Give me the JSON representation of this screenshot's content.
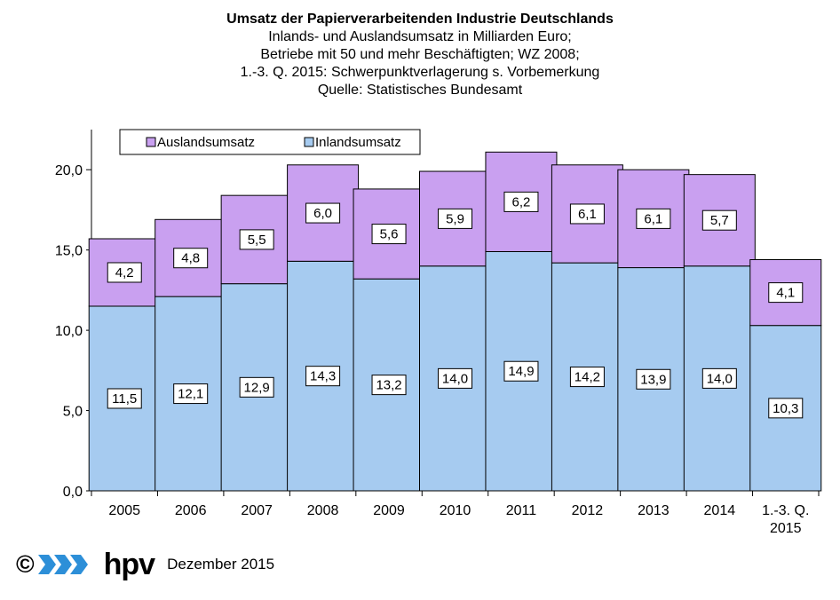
{
  "chart_data": {
    "type": "bar",
    "stacked": true,
    "title": "Umsatz der Papierverarbeitenden Industrie Deutschlands",
    "subtitle_lines": [
      "Inlands- und Auslandsumsatz  in Milliarden Euro;",
      "Betriebe mit 50 und mehr Beschäftigten; WZ 2008;",
      "1.-3. Q. 2015: Schwerpunktverlagerung  s. Vorbemerkung",
      "Quelle:  Statistisches Bundesamt"
    ],
    "categories": [
      "2005",
      "2006",
      "2007",
      "2008",
      "2009",
      "2010",
      "2011",
      "2012",
      "2013",
      "2014",
      "1.-3. Q.\n2015"
    ],
    "series": [
      {
        "name": "Inlandsumsatz",
        "color": "#a6cbf0",
        "values": [
          11.5,
          12.1,
          12.9,
          14.3,
          13.2,
          14.0,
          14.9,
          14.2,
          13.9,
          14.0,
          10.3
        ],
        "labels": [
          "11,5",
          "12,1",
          "12,9",
          "14,3",
          "13,2",
          "14,0",
          "14,9",
          "14,2",
          "13,9",
          "14,0",
          "10,3"
        ]
      },
      {
        "name": "Auslandsumsatz",
        "color": "#c9a0f0",
        "values": [
          4.2,
          4.8,
          5.5,
          6.0,
          5.6,
          5.9,
          6.2,
          6.1,
          6.1,
          5.7,
          4.1
        ],
        "labels": [
          "4,2",
          "4,8",
          "5,5",
          "6,0",
          "5,6",
          "5,9",
          "6,2",
          "6,1",
          "6,1",
          "5,7",
          "4,1"
        ]
      }
    ],
    "ylim": [
      0,
      22.5
    ],
    "yticks": [
      0,
      5,
      10,
      15,
      20
    ],
    "ytick_labels": [
      "0,0",
      "5,0",
      "10,0",
      "15,0",
      "20,0"
    ],
    "legend": {
      "placement": "top-left",
      "entries": [
        "Auslandsumsatz",
        "Inlandsumsatz"
      ]
    },
    "grid": false
  },
  "footer": {
    "copyright": "©",
    "brand": "hpv",
    "date": "Dezember 2015"
  },
  "colors": {
    "logo_blue": "#2d8fd8"
  }
}
